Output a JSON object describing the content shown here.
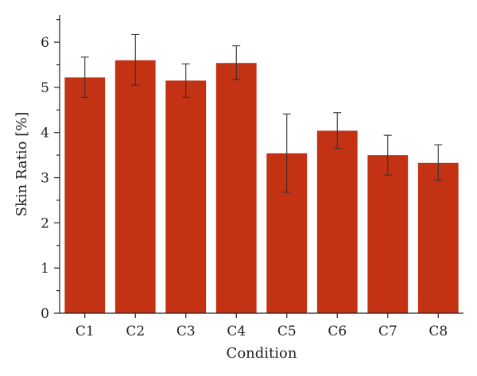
{
  "chart_data": {
    "type": "bar",
    "title": "",
    "xlabel": "Condition",
    "ylabel": "Skin Ratio [%]",
    "categories": [
      "C1",
      "C2",
      "C3",
      "C4",
      "C5",
      "C6",
      "C7",
      "C8"
    ],
    "values": [
      5.22,
      5.6,
      5.15,
      5.54,
      3.54,
      4.04,
      3.5,
      3.33
    ],
    "error_low": [
      4.78,
      5.05,
      4.78,
      5.17,
      2.68,
      3.65,
      3.06,
      2.94
    ],
    "error_high": [
      5.67,
      6.17,
      5.52,
      5.92,
      4.41,
      4.44,
      3.94,
      3.73
    ],
    "ylim": [
      0,
      6.6
    ],
    "yticks": [
      0,
      1,
      2,
      3,
      4,
      5,
      6
    ],
    "y_minor_step": 0.5,
    "grid": false,
    "legend": "none",
    "bar_color": "#c43214"
  }
}
